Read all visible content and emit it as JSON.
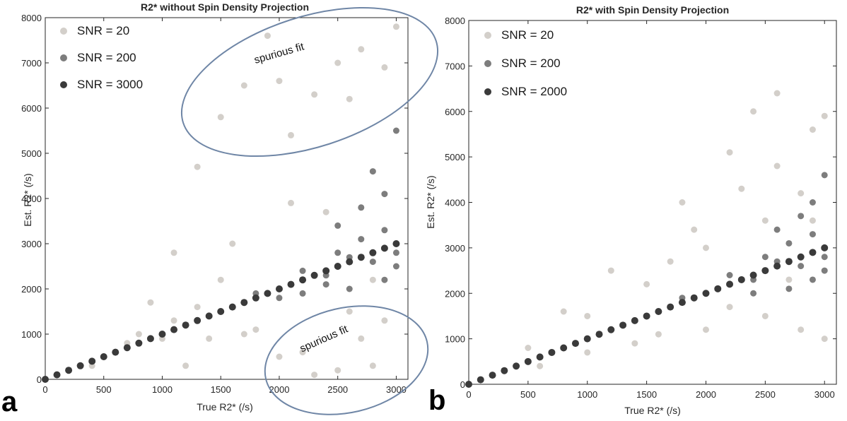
{
  "panel_letters": [
    "a",
    "b"
  ],
  "colors": {
    "snr_low": "#d3cfca",
    "snr_mid": "#7d7d7d",
    "snr_high": "#3a3a3a",
    "ellipse": "#6f86a6",
    "axis": "#262626"
  },
  "annotations": [
    {
      "text": "spurious fit",
      "panel": 0
    },
    {
      "text": "spurious fit",
      "panel": 0
    }
  ],
  "chart_data": [
    {
      "type": "scatter",
      "title": "R2* without Spin Density Projection",
      "xlabel": "True R2* (/s)",
      "ylabel": "Est. R2* (/s)",
      "xlim": [
        0,
        3100
      ],
      "ylim": [
        0,
        8000
      ],
      "xticks": [
        0,
        500,
        1000,
        1500,
        2000,
        2500,
        3000
      ],
      "yticks": [
        0,
        1000,
        2000,
        3000,
        4000,
        5000,
        6000,
        7000,
        8000
      ],
      "legend_position": "top-left",
      "series": [
        {
          "name": "SNR = 20",
          "color": "#d3cfca",
          "points": [
            [
              2000,
              500
            ],
            [
              1800,
              1100
            ],
            [
              1200,
              300
            ],
            [
              800,
              1000
            ],
            [
              1000,
              900
            ],
            [
              1500,
              2200
            ],
            [
              2500,
              200
            ],
            [
              2200,
              600
            ],
            [
              2700,
              900
            ],
            [
              2800,
              300
            ],
            [
              2900,
              1300
            ],
            [
              2600,
              1500
            ],
            [
              2300,
              100
            ],
            [
              1700,
              6500
            ],
            [
              2000,
              6600
            ],
            [
              2300,
              6300
            ],
            [
              2500,
              7000
            ],
            [
              2700,
              7300
            ],
            [
              2900,
              6900
            ],
            [
              1900,
              7600
            ],
            [
              1500,
              5800
            ],
            [
              2100,
              5400
            ],
            [
              2600,
              6200
            ],
            [
              3000,
              7800
            ],
            [
              1300,
              4700
            ],
            [
              1100,
              2800
            ],
            [
              900,
              1700
            ],
            [
              1600,
              3000
            ],
            [
              2100,
              3900
            ],
            [
              2400,
              3700
            ],
            [
              2800,
              2200
            ],
            [
              600,
              600
            ],
            [
              400,
              300
            ],
            [
              200,
              200
            ],
            [
              100,
              100
            ],
            [
              1300,
              1600
            ],
            [
              1700,
              1000
            ],
            [
              1100,
              1300
            ],
            [
              1400,
              900
            ],
            [
              700,
              800
            ]
          ]
        },
        {
          "name": "SNR = 200",
          "color": "#7d7d7d",
          "points": [
            [
              1500,
              1500
            ],
            [
              1800,
              1900
            ],
            [
              2000,
              2000
            ],
            [
              2200,
              2400
            ],
            [
              2400,
              2300
            ],
            [
              2500,
              2800
            ],
            [
              2600,
              2700
            ],
            [
              2700,
              3100
            ],
            [
              2800,
              2600
            ],
            [
              2900,
              3300
            ],
            [
              3000,
              2800
            ],
            [
              2500,
              3400
            ],
            [
              2700,
              3800
            ],
            [
              2900,
              4100
            ],
            [
              3000,
              5500
            ],
            [
              2800,
              4600
            ],
            [
              2600,
              2000
            ],
            [
              2900,
              2200
            ],
            [
              3000,
              2500
            ],
            [
              2400,
              2100
            ],
            [
              2200,
              1900
            ],
            [
              2000,
              1800
            ]
          ]
        },
        {
          "name": "SNR = 3000",
          "color": "#3a3a3a",
          "points": [
            [
              0,
              0
            ],
            [
              100,
              100
            ],
            [
              200,
              200
            ],
            [
              300,
              300
            ],
            [
              400,
              400
            ],
            [
              500,
              500
            ],
            [
              600,
              600
            ],
            [
              700,
              700
            ],
            [
              800,
              800
            ],
            [
              900,
              900
            ],
            [
              1000,
              1000
            ],
            [
              1100,
              1100
            ],
            [
              1200,
              1200
            ],
            [
              1300,
              1300
            ],
            [
              1400,
              1400
            ],
            [
              1500,
              1500
            ],
            [
              1600,
              1600
            ],
            [
              1700,
              1700
            ],
            [
              1800,
              1800
            ],
            [
              1900,
              1900
            ],
            [
              2000,
              2000
            ],
            [
              2100,
              2100
            ],
            [
              2200,
              2200
            ],
            [
              2300,
              2300
            ],
            [
              2400,
              2400
            ],
            [
              2500,
              2500
            ],
            [
              2600,
              2600
            ],
            [
              2700,
              2700
            ],
            [
              2800,
              2800
            ],
            [
              2900,
              2900
            ],
            [
              3000,
              3000
            ]
          ]
        }
      ]
    },
    {
      "type": "scatter",
      "title": "R2* with Spin Density Projection",
      "xlabel": "True R2* (/s)",
      "ylabel": "Est. R2* (/s)",
      "xlim": [
        0,
        3100
      ],
      "ylim": [
        0,
        8000
      ],
      "xticks": [
        0,
        500,
        1000,
        1500,
        2000,
        2500,
        3000
      ],
      "yticks": [
        0,
        1000,
        2000,
        3000,
        4000,
        5000,
        6000,
        7000,
        8000
      ],
      "legend_position": "top-left",
      "series": [
        {
          "name": "SNR = 20",
          "color": "#d3cfca",
          "points": [
            [
              1000,
              1500
            ],
            [
              1500,
              2200
            ],
            [
              2000,
              3000
            ],
            [
              2500,
              3600
            ],
            [
              2800,
              4200
            ],
            [
              2600,
              6400
            ],
            [
              2400,
              6000
            ],
            [
              2900,
              5600
            ],
            [
              3000,
              5900
            ],
            [
              2200,
              5100
            ],
            [
              1800,
              4000
            ],
            [
              1200,
              2500
            ],
            [
              800,
              1600
            ],
            [
              500,
              800
            ],
            [
              2500,
              1500
            ],
            [
              2800,
              1200
            ],
            [
              3000,
              1000
            ],
            [
              2000,
              1200
            ],
            [
              1600,
              1100
            ],
            [
              2200,
              1700
            ],
            [
              2700,
              2300
            ],
            [
              1400,
              900
            ],
            [
              1000,
              700
            ],
            [
              600,
              400
            ],
            [
              300,
              300
            ],
            [
              2300,
              4300
            ],
            [
              1900,
              3400
            ],
            [
              2600,
              4800
            ],
            [
              2900,
              3600
            ],
            [
              1700,
              2700
            ]
          ]
        },
        {
          "name": "SNR = 200",
          "color": "#7d7d7d",
          "points": [
            [
              1500,
              1500
            ],
            [
              1800,
              1900
            ],
            [
              2000,
              2000
            ],
            [
              2200,
              2400
            ],
            [
              2400,
              2300
            ],
            [
              2500,
              2800
            ],
            [
              2600,
              2700
            ],
            [
              2700,
              3100
            ],
            [
              2800,
              2600
            ],
            [
              2900,
              3300
            ],
            [
              3000,
              2800
            ],
            [
              2600,
              3400
            ],
            [
              2800,
              3700
            ],
            [
              2900,
              4000
            ],
            [
              3000,
              4600
            ],
            [
              2700,
              2100
            ],
            [
              2900,
              2300
            ],
            [
              3000,
              2500
            ],
            [
              2400,
              2000
            ]
          ]
        },
        {
          "name": "SNR = 2000",
          "color": "#3a3a3a",
          "points": [
            [
              0,
              0
            ],
            [
              100,
              100
            ],
            [
              200,
              200
            ],
            [
              300,
              300
            ],
            [
              400,
              400
            ],
            [
              500,
              500
            ],
            [
              600,
              600
            ],
            [
              700,
              700
            ],
            [
              800,
              800
            ],
            [
              900,
              900
            ],
            [
              1000,
              1000
            ],
            [
              1100,
              1100
            ],
            [
              1200,
              1200
            ],
            [
              1300,
              1300
            ],
            [
              1400,
              1400
            ],
            [
              1500,
              1500
            ],
            [
              1600,
              1600
            ],
            [
              1700,
              1700
            ],
            [
              1800,
              1800
            ],
            [
              1900,
              1900
            ],
            [
              2000,
              2000
            ],
            [
              2100,
              2100
            ],
            [
              2200,
              2200
            ],
            [
              2300,
              2300
            ],
            [
              2400,
              2400
            ],
            [
              2500,
              2500
            ],
            [
              2600,
              2600
            ],
            [
              2700,
              2700
            ],
            [
              2800,
              2800
            ],
            [
              2900,
              2900
            ],
            [
              3000,
              3000
            ]
          ]
        }
      ]
    }
  ]
}
